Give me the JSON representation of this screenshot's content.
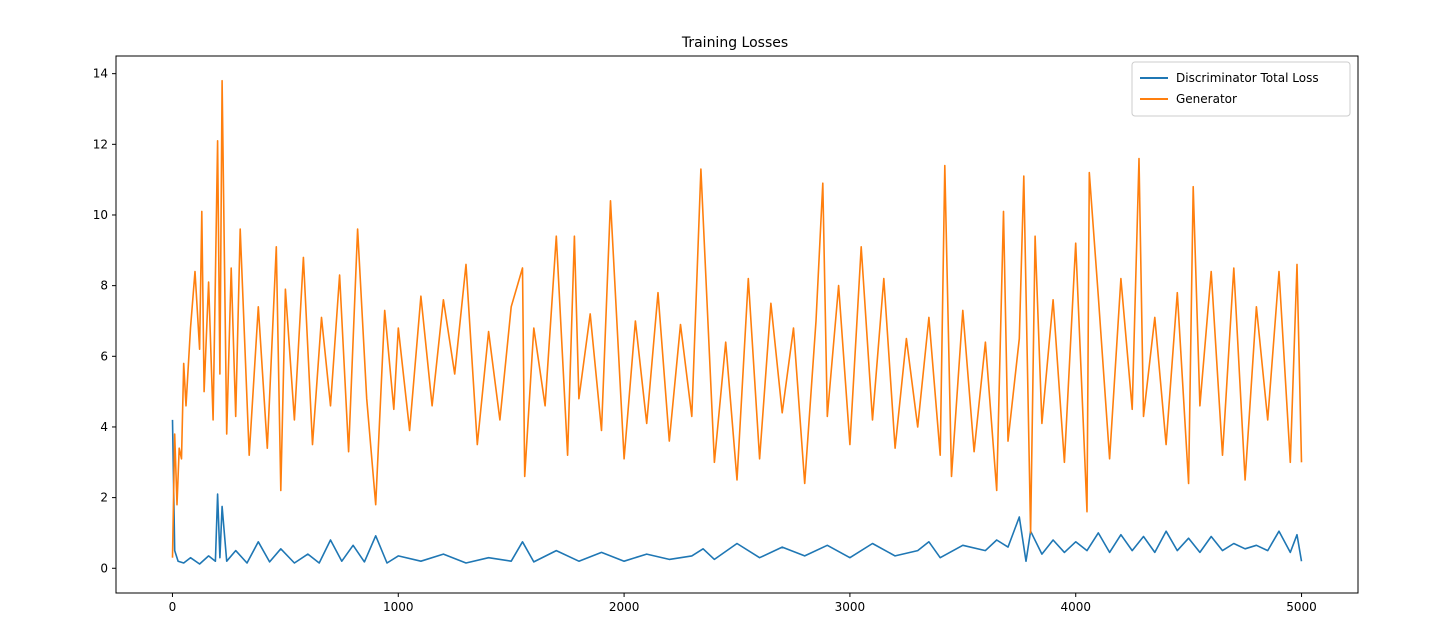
{
  "chart_data": {
    "type": "line",
    "title": "Training Losses",
    "xlabel": "",
    "ylabel": "",
    "xlim": [
      -250,
      5250
    ],
    "ylim": [
      -0.7,
      14.5
    ],
    "x_ticks": [
      0,
      1000,
      2000,
      3000,
      4000,
      5000
    ],
    "y_ticks": [
      0,
      2,
      4,
      6,
      8,
      10,
      12,
      14
    ],
    "grid": false,
    "legend_position": "top-right",
    "series": [
      {
        "name": "Discriminator Total Loss",
        "color": "#1f77b4",
        "x": [
          0,
          10,
          25,
          50,
          80,
          120,
          160,
          190,
          200,
          210,
          220,
          240,
          280,
          330,
          380,
          430,
          480,
          540,
          600,
          650,
          700,
          750,
          800,
          850,
          900,
          950,
          1000,
          1100,
          1200,
          1300,
          1400,
          1500,
          1550,
          1600,
          1700,
          1800,
          1900,
          2000,
          2100,
          2200,
          2300,
          2350,
          2400,
          2500,
          2600,
          2700,
          2800,
          2900,
          3000,
          3100,
          3200,
          3300,
          3350,
          3400,
          3500,
          3600,
          3650,
          3700,
          3750,
          3780,
          3800,
          3850,
          3900,
          3950,
          4000,
          4050,
          4100,
          4150,
          4200,
          4250,
          4300,
          4350,
          4400,
          4450,
          4500,
          4550,
          4600,
          4650,
          4700,
          4750,
          4800,
          4850,
          4900,
          4950,
          4980,
          5000
        ],
        "values": [
          4.2,
          0.5,
          0.2,
          0.15,
          0.3,
          0.12,
          0.35,
          0.2,
          2.1,
          0.3,
          1.75,
          0.2,
          0.5,
          0.15,
          0.75,
          0.18,
          0.55,
          0.15,
          0.4,
          0.15,
          0.8,
          0.2,
          0.65,
          0.18,
          0.92,
          0.15,
          0.35,
          0.2,
          0.4,
          0.15,
          0.3,
          0.2,
          0.75,
          0.18,
          0.5,
          0.2,
          0.45,
          0.2,
          0.4,
          0.25,
          0.35,
          0.55,
          0.25,
          0.7,
          0.3,
          0.6,
          0.35,
          0.65,
          0.3,
          0.7,
          0.35,
          0.5,
          0.75,
          0.3,
          0.65,
          0.5,
          0.8,
          0.6,
          1.45,
          0.2,
          1.05,
          0.4,
          0.8,
          0.45,
          0.75,
          0.5,
          1.0,
          0.45,
          0.95,
          0.5,
          0.9,
          0.45,
          1.05,
          0.5,
          0.85,
          0.45,
          0.9,
          0.5,
          0.7,
          0.55,
          0.65,
          0.5,
          1.05,
          0.45,
          0.95,
          0.2
        ]
      },
      {
        "name": "Generator",
        "color": "#ff7f0e",
        "x": [
          0,
          10,
          20,
          30,
          40,
          50,
          60,
          80,
          100,
          120,
          130,
          140,
          160,
          180,
          200,
          210,
          220,
          240,
          260,
          280,
          300,
          340,
          380,
          420,
          460,
          480,
          500,
          540,
          580,
          620,
          660,
          700,
          740,
          780,
          820,
          860,
          900,
          940,
          980,
          1000,
          1050,
          1100,
          1150,
          1200,
          1250,
          1300,
          1350,
          1400,
          1450,
          1500,
          1550,
          1560,
          1600,
          1650,
          1700,
          1750,
          1780,
          1800,
          1850,
          1900,
          1940,
          2000,
          2050,
          2100,
          2150,
          2200,
          2250,
          2300,
          2340,
          2400,
          2450,
          2500,
          2550,
          2600,
          2650,
          2700,
          2750,
          2800,
          2850,
          2880,
          2900,
          2950,
          3000,
          3050,
          3100,
          3150,
          3200,
          3250,
          3300,
          3350,
          3400,
          3420,
          3450,
          3500,
          3550,
          3600,
          3650,
          3680,
          3700,
          3750,
          3770,
          3800,
          3820,
          3850,
          3900,
          3950,
          4000,
          4050,
          4060,
          4100,
          4150,
          4200,
          4250,
          4280,
          4300,
          4350,
          4400,
          4450,
          4500,
          4520,
          4550,
          4600,
          4650,
          4700,
          4750,
          4800,
          4850,
          4900,
          4950,
          4980,
          5000
        ],
        "values": [
          0.3,
          3.8,
          1.8,
          3.4,
          3.1,
          5.8,
          4.6,
          6.8,
          8.4,
          6.2,
          10.1,
          5.0,
          8.1,
          4.2,
          12.1,
          5.5,
          13.8,
          3.8,
          8.5,
          4.3,
          9.6,
          3.2,
          7.4,
          3.4,
          9.1,
          2.2,
          7.9,
          4.2,
          8.8,
          3.5,
          7.1,
          4.6,
          8.3,
          3.3,
          9.6,
          4.8,
          1.8,
          7.3,
          4.5,
          6.8,
          3.9,
          7.7,
          4.6,
          7.6,
          5.5,
          8.6,
          3.5,
          6.7,
          4.2,
          7.4,
          8.5,
          2.6,
          6.8,
          4.6,
          9.4,
          3.2,
          9.4,
          4.8,
          7.2,
          3.9,
          10.4,
          3.1,
          7.0,
          4.1,
          7.8,
          3.6,
          6.9,
          4.3,
          11.3,
          3.0,
          6.4,
          2.5,
          8.2,
          3.1,
          7.5,
          4.4,
          6.8,
          2.4,
          7.0,
          10.9,
          4.3,
          8.0,
          3.5,
          9.1,
          4.2,
          8.2,
          3.4,
          6.5,
          4.0,
          7.1,
          3.2,
          11.4,
          2.6,
          7.3,
          3.3,
          6.4,
          2.2,
          10.1,
          3.6,
          6.5,
          11.1,
          1.0,
          9.4,
          4.1,
          7.6,
          3.0,
          9.2,
          1.6,
          11.2,
          7.7,
          3.1,
          8.2,
          4.5,
          11.6,
          4.3,
          7.1,
          3.5,
          7.8,
          2.4,
          10.8,
          4.6,
          8.4,
          3.2,
          8.5,
          2.5,
          7.4,
          4.2,
          8.4,
          3.0,
          8.6,
          3.0
        ]
      }
    ]
  }
}
